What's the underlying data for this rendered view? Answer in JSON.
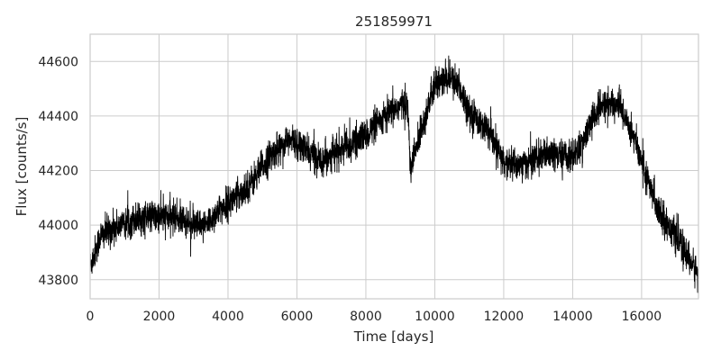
{
  "chart_data": {
    "type": "line",
    "title": "251859971",
    "xlabel": "Time [days]",
    "ylabel": "Flux [counts/s]",
    "xlim": [
      0,
      17650
    ],
    "ylim": [
      43730,
      44700
    ],
    "grid": true,
    "x_ticks": [
      0,
      2000,
      4000,
      6000,
      8000,
      10000,
      12000,
      14000,
      16000
    ],
    "y_ticks": [
      43800,
      44000,
      44200,
      44400,
      44600
    ],
    "line_color": "#000000",
    "series": [
      {
        "x": [
          0,
          300,
          700,
          1200,
          1800,
          2500,
          3000,
          3300,
          3700,
          4200,
          4700,
          5200,
          5600,
          5900,
          6300,
          6700,
          7000,
          7500,
          8000,
          8500,
          9000,
          9200,
          9300,
          9600,
          10000,
          10400,
          10700,
          11000,
          11500,
          12000,
          12500,
          13000,
          13500,
          14000,
          14300,
          14600,
          15000,
          15400,
          15800,
          16200,
          16600,
          17000,
          17400,
          17650
        ],
        "y": [
          43850,
          43960,
          43990,
          44020,
          44030,
          44030,
          44000,
          43990,
          44050,
          44100,
          44160,
          44250,
          44300,
          44310,
          44270,
          44240,
          44260,
          44290,
          44330,
          44390,
          44440,
          44450,
          44200,
          44350,
          44510,
          44540,
          44510,
          44420,
          44350,
          44230,
          44220,
          44250,
          44260,
          44250,
          44300,
          44400,
          44450,
          44430,
          44320,
          44150,
          44030,
          43960,
          43870,
          43820
        ]
      }
    ]
  }
}
